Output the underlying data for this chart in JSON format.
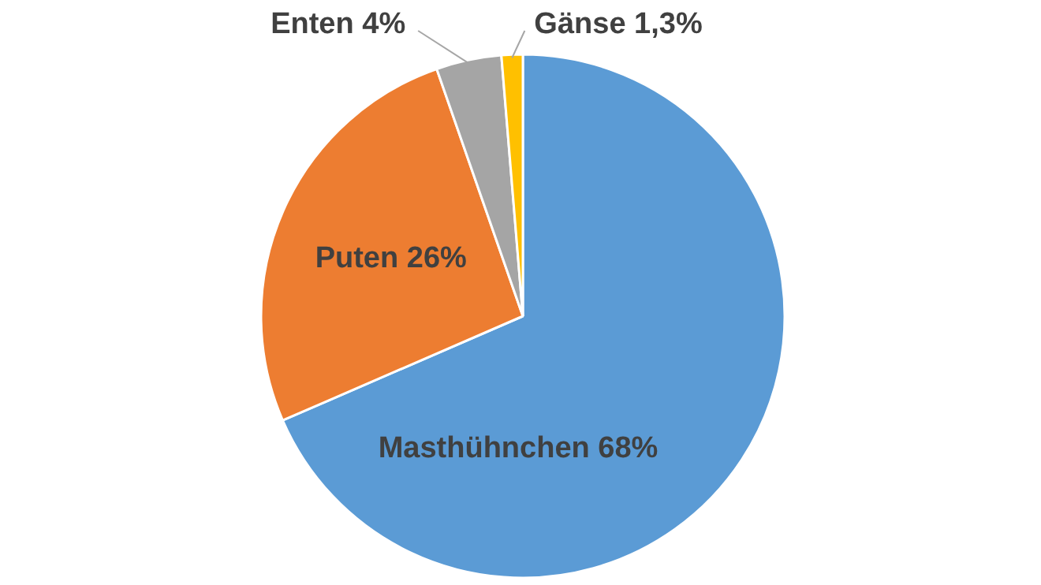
{
  "chart_data": {
    "type": "pie",
    "categories": [
      "Masthühnchen",
      "Puten",
      "Enten",
      "Gänse"
    ],
    "values": [
      68,
      26,
      4,
      1.3
    ],
    "value_labels": [
      "68%",
      "26%",
      "4%",
      "1,3%"
    ],
    "colors": [
      "#5b9bd5",
      "#ed7d31",
      "#a5a5a5",
      "#ffc000"
    ]
  }
}
